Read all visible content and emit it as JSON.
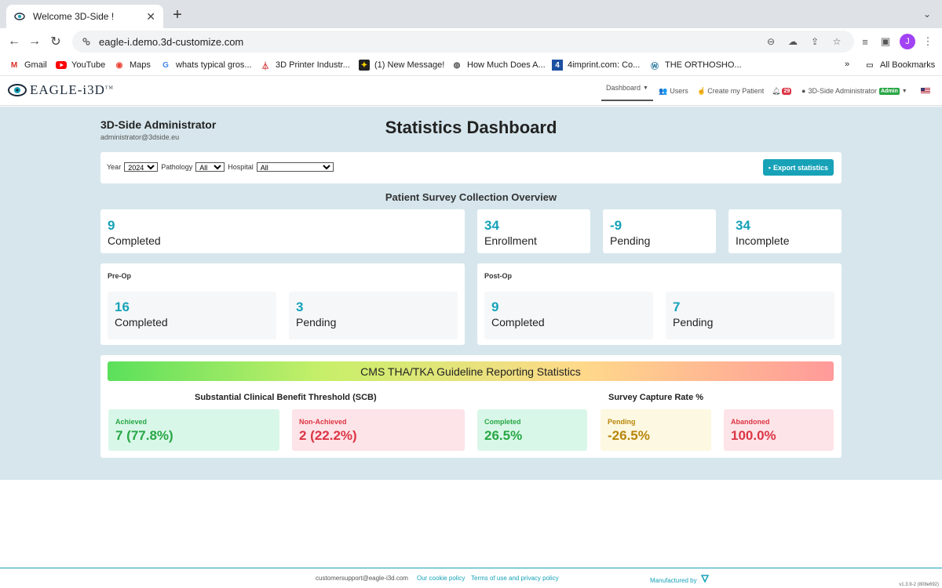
{
  "browser": {
    "tab_title": "Welcome 3D-Side !",
    "url": "eagle-i.demo.3d-customize.com",
    "profile_initial": "J",
    "bookmarks": [
      {
        "label": "Gmail",
        "icon": "gmail-icon"
      },
      {
        "label": "YouTube",
        "icon": "youtube-icon"
      },
      {
        "label": "Maps",
        "icon": "maps-icon"
      },
      {
        "label": "whats typical gros...",
        "icon": "google-icon"
      },
      {
        "label": "3D Printer Industr...",
        "icon": "printer-site-icon"
      },
      {
        "label": "(1) New Message!",
        "icon": "message-icon"
      },
      {
        "label": "How Much Does A...",
        "icon": "globe-icon"
      },
      {
        "label": "4imprint.com: Co...",
        "icon": "4imprint-icon"
      },
      {
        "label": "THE ORTHOSHO...",
        "icon": "wordpress-icon"
      }
    ],
    "more_bookmarks": "»",
    "all_bookmarks": "All Bookmarks"
  },
  "app": {
    "logo_text": "EAGLE-i3D",
    "logo_tm": "TM",
    "nav": {
      "dashboard": "Dashboard",
      "users": "Users",
      "create_patient": "Create my Patient",
      "notifications_count": "29",
      "account_name": "3D-Side Administrator",
      "account_role": "Admin"
    }
  },
  "header": {
    "user_name": "3D-Side Administrator",
    "user_email": "administrator@3dside.eu",
    "page_title": "Statistics Dashboard"
  },
  "filters": {
    "year_label": "Year",
    "year_value": "2024",
    "pathology_label": "Pathology",
    "pathology_value": "All",
    "hospital_label": "Hospital",
    "hospital_value": "All",
    "export_label": "Export statistics"
  },
  "overview": {
    "title": "Patient Survey Collection Overview",
    "completed": {
      "value": "9",
      "label": "Completed"
    },
    "enrollment": {
      "value": "34",
      "label": "Enrollment"
    },
    "pending": {
      "value": "-9",
      "label": "Pending"
    },
    "incomplete": {
      "value": "34",
      "label": "Incomplete"
    }
  },
  "preop": {
    "title": "Pre-Op",
    "completed": {
      "value": "16",
      "label": "Completed"
    },
    "pending": {
      "value": "3",
      "label": "Pending"
    }
  },
  "postop": {
    "title": "Post-Op",
    "completed": {
      "value": "9",
      "label": "Completed"
    },
    "pending": {
      "value": "7",
      "label": "Pending"
    }
  },
  "cms": {
    "banner": "CMS THA/TKA Guideline Reporting Statistics",
    "scb_title": "Substantial Clinical Benefit Threshold (SCB)",
    "capture_title": "Survey Capture Rate %",
    "achieved": {
      "label": "Achieved",
      "value": "7 (77.8%)"
    },
    "non_achieved": {
      "label": "Non-Achieved",
      "value": "2 (22.2%)"
    },
    "completed": {
      "label": "Completed",
      "value": "26.5%"
    },
    "pending": {
      "label": "Pending",
      "value": "-26.5%"
    },
    "abandoned": {
      "label": "Abandoned",
      "value": "100.0%"
    }
  },
  "colors": {
    "accent": "#17a2b8",
    "background": "#d6e6ec",
    "success": "#28a745",
    "danger": "#dc3545",
    "warning": "#b8860b"
  },
  "footer": {
    "email": "customersupport@eagle-i3d.com",
    "cookie": "Our cookie policy",
    "terms": "Terms of use and privacy policy",
    "manufactured": "Manufactured by",
    "version": "v1.3.9-2 (808e692)"
  }
}
